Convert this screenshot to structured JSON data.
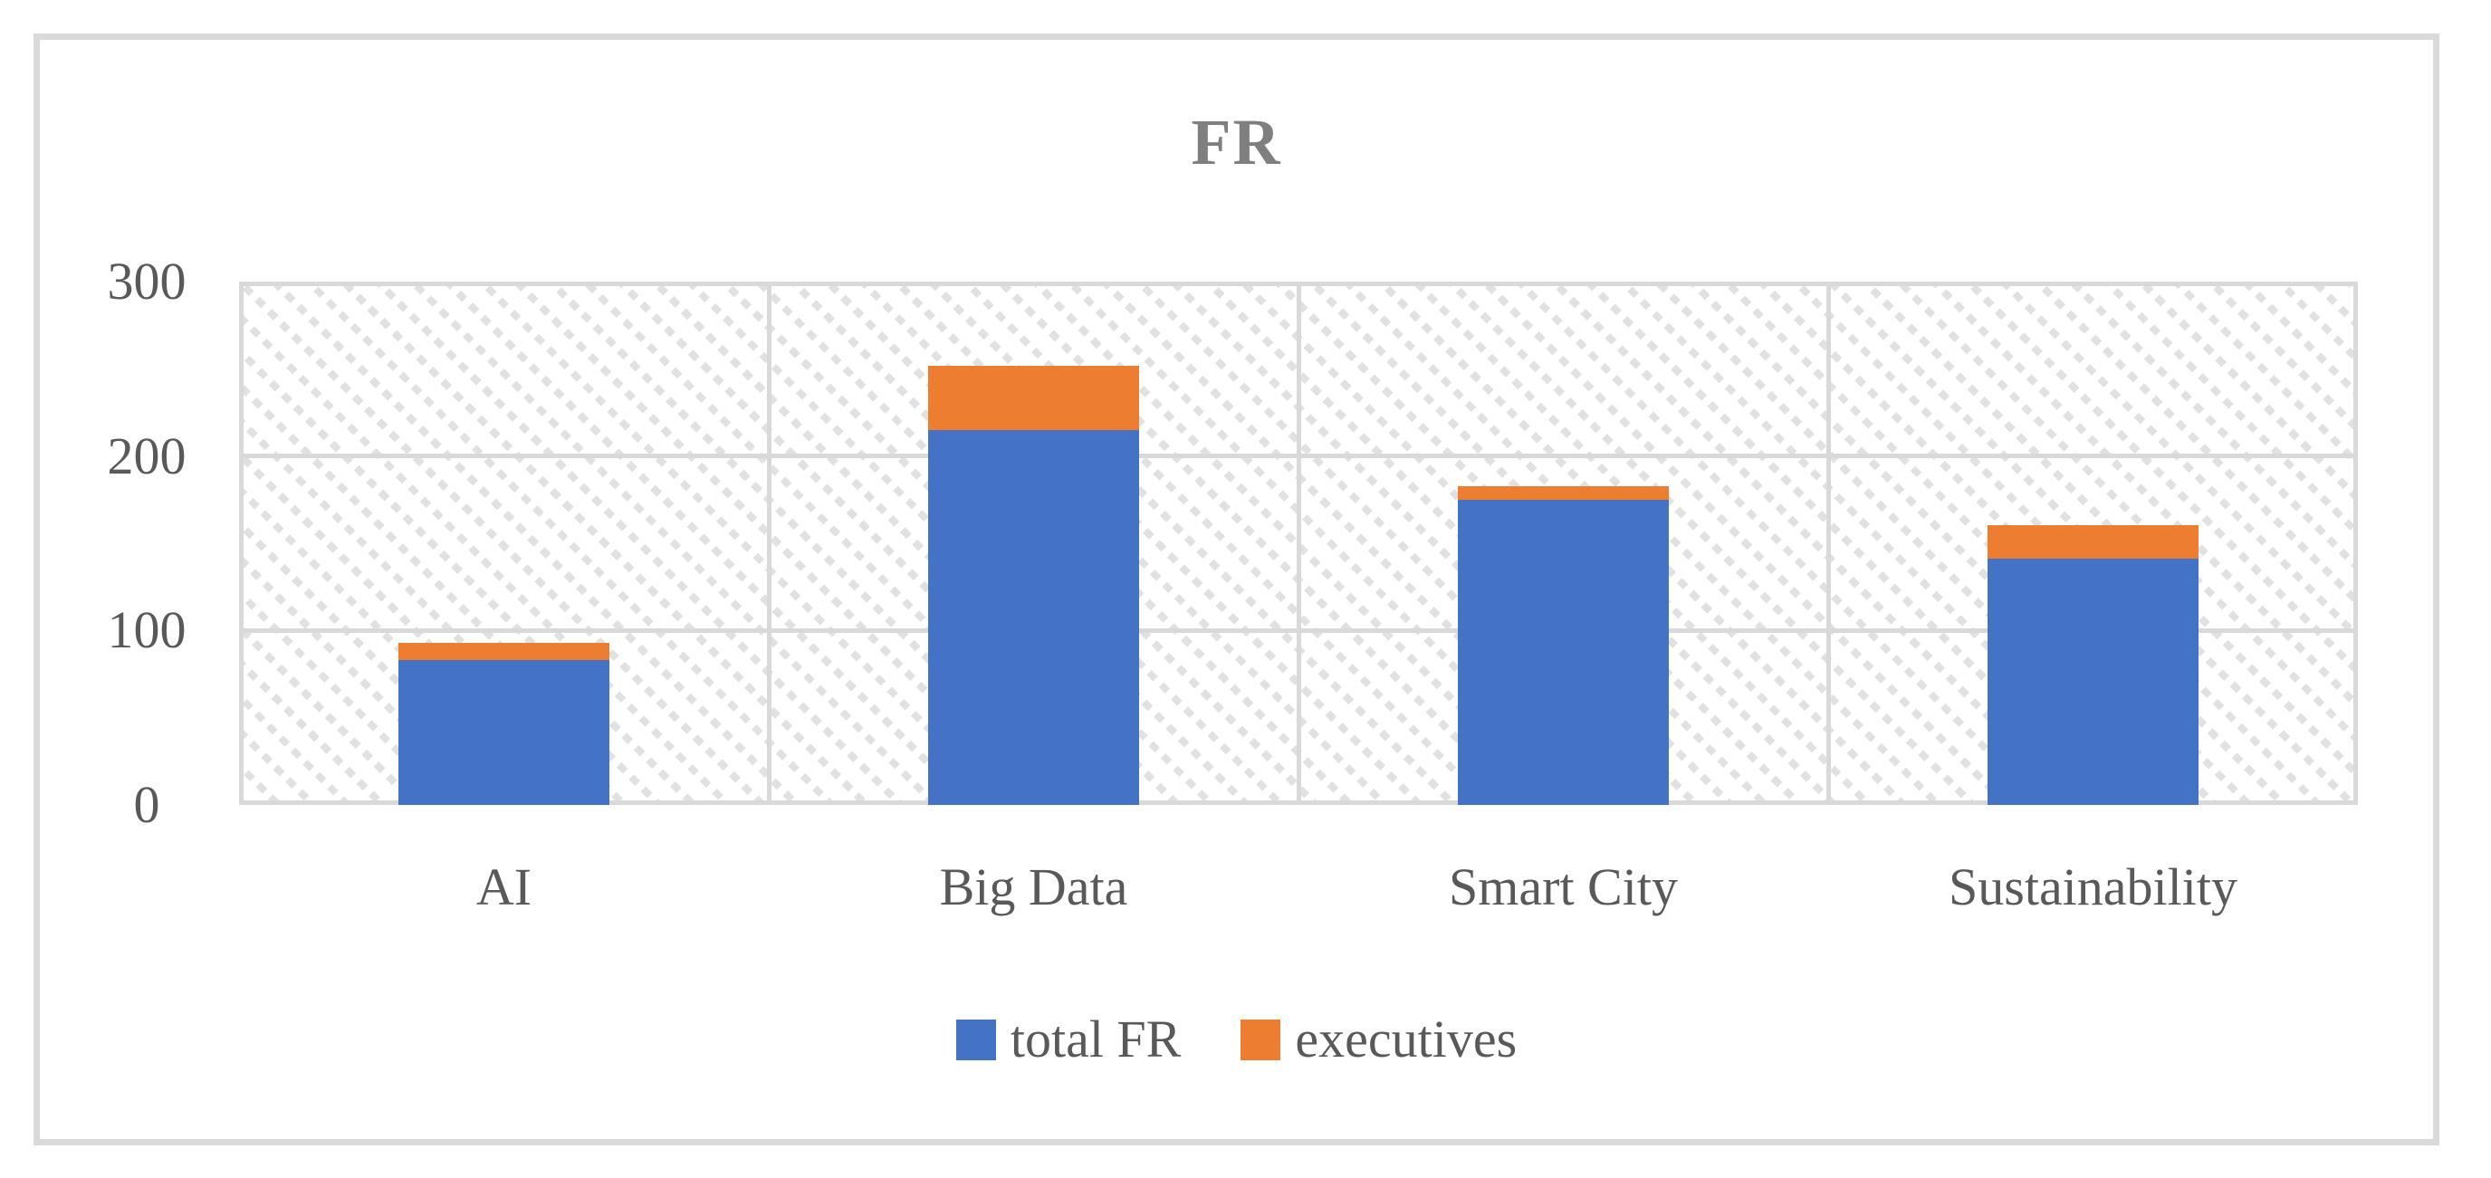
{
  "figure": {
    "title": "FR"
  },
  "colors": {
    "total_fr": "#4472C4",
    "executives": "#ED7D31",
    "gridline": "#D9D9D9",
    "frame_border": "#D9D9D9",
    "axis_text": "#595959",
    "title_text": "#7F7F7F",
    "plot_pattern": "#E1E1E1",
    "background": "#FFFFFF"
  },
  "chart_data": {
    "type": "bar",
    "stacked": true,
    "title": "FR",
    "xlabel": "",
    "ylabel": "",
    "categories": [
      "AI",
      "Big Data",
      "Smart City",
      "Sustainability"
    ],
    "series": [
      {
        "name": "total FR",
        "color": "#4472C4",
        "values": [
          83,
          215,
          175,
          141
        ]
      },
      {
        "name": "executives",
        "color": "#ED7D31",
        "values": [
          10,
          37,
          8,
          19
        ]
      }
    ],
    "stack_totals": [
      93,
      252,
      183,
      160
    ],
    "ylim": [
      0,
      300
    ],
    "yticks": [
      0,
      100,
      200,
      300
    ],
    "grid": true,
    "plot_area_fill": "light-diagonal-hatch-pattern",
    "legend_position": "bottom"
  },
  "legend": {
    "items": [
      {
        "label": "total FR",
        "color": "#4472C4"
      },
      {
        "label": "executives",
        "color": "#ED7D31"
      }
    ]
  }
}
